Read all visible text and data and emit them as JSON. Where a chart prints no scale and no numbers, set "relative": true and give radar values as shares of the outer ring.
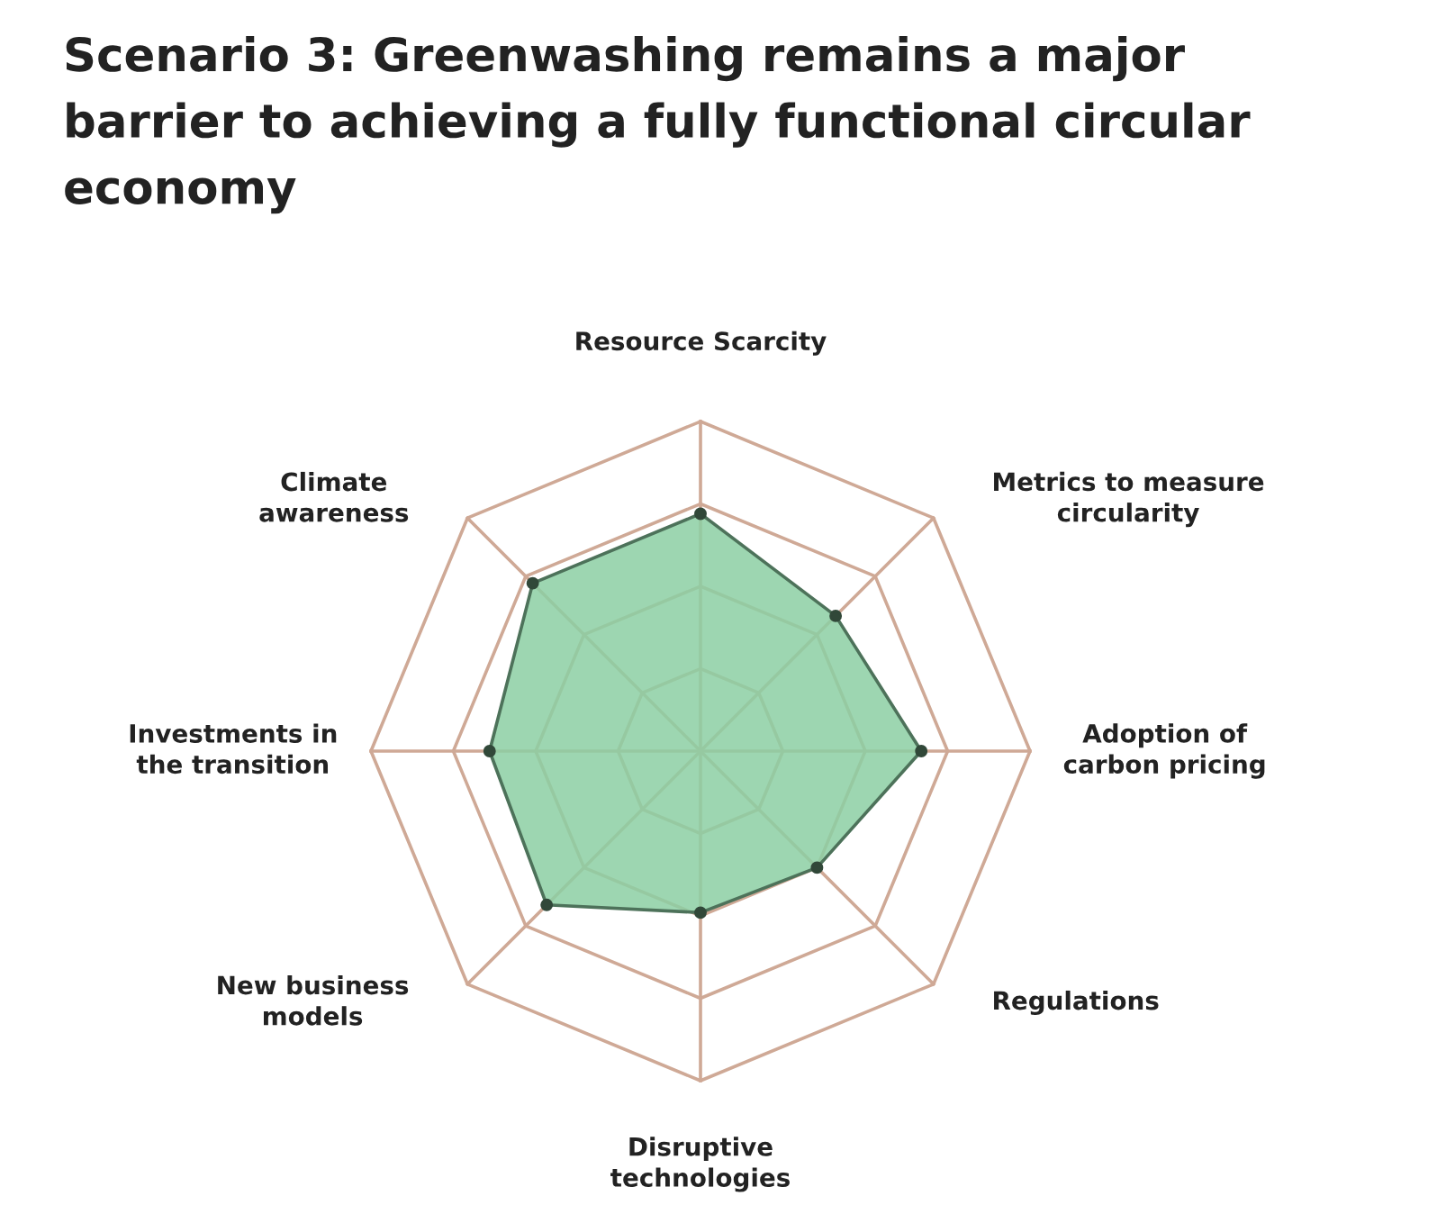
{
  "chart_data": {
    "type": "radar",
    "title": "Scenario 3: Greenwashing remains a major\nbarrier to achieving a fully functional circular\neconomy",
    "categories": [
      "Resource Scarcity",
      "Metrics to measure\ncircularity",
      "Adoption of\ncarbon pricing",
      "Regulations",
      "Disruptive\ntechnologies",
      "New business\nmodels",
      "Investments in\nthe transition",
      "Climate\nawareness"
    ],
    "series": [
      {
        "color": "#8ccfa3",
        "values": [
          0.72,
          0.58,
          0.67,
          0.5,
          0.49,
          0.66,
          0.64,
          0.72
        ]
      }
    ],
    "relative": true,
    "grid": true,
    "marker": "circle"
  }
}
